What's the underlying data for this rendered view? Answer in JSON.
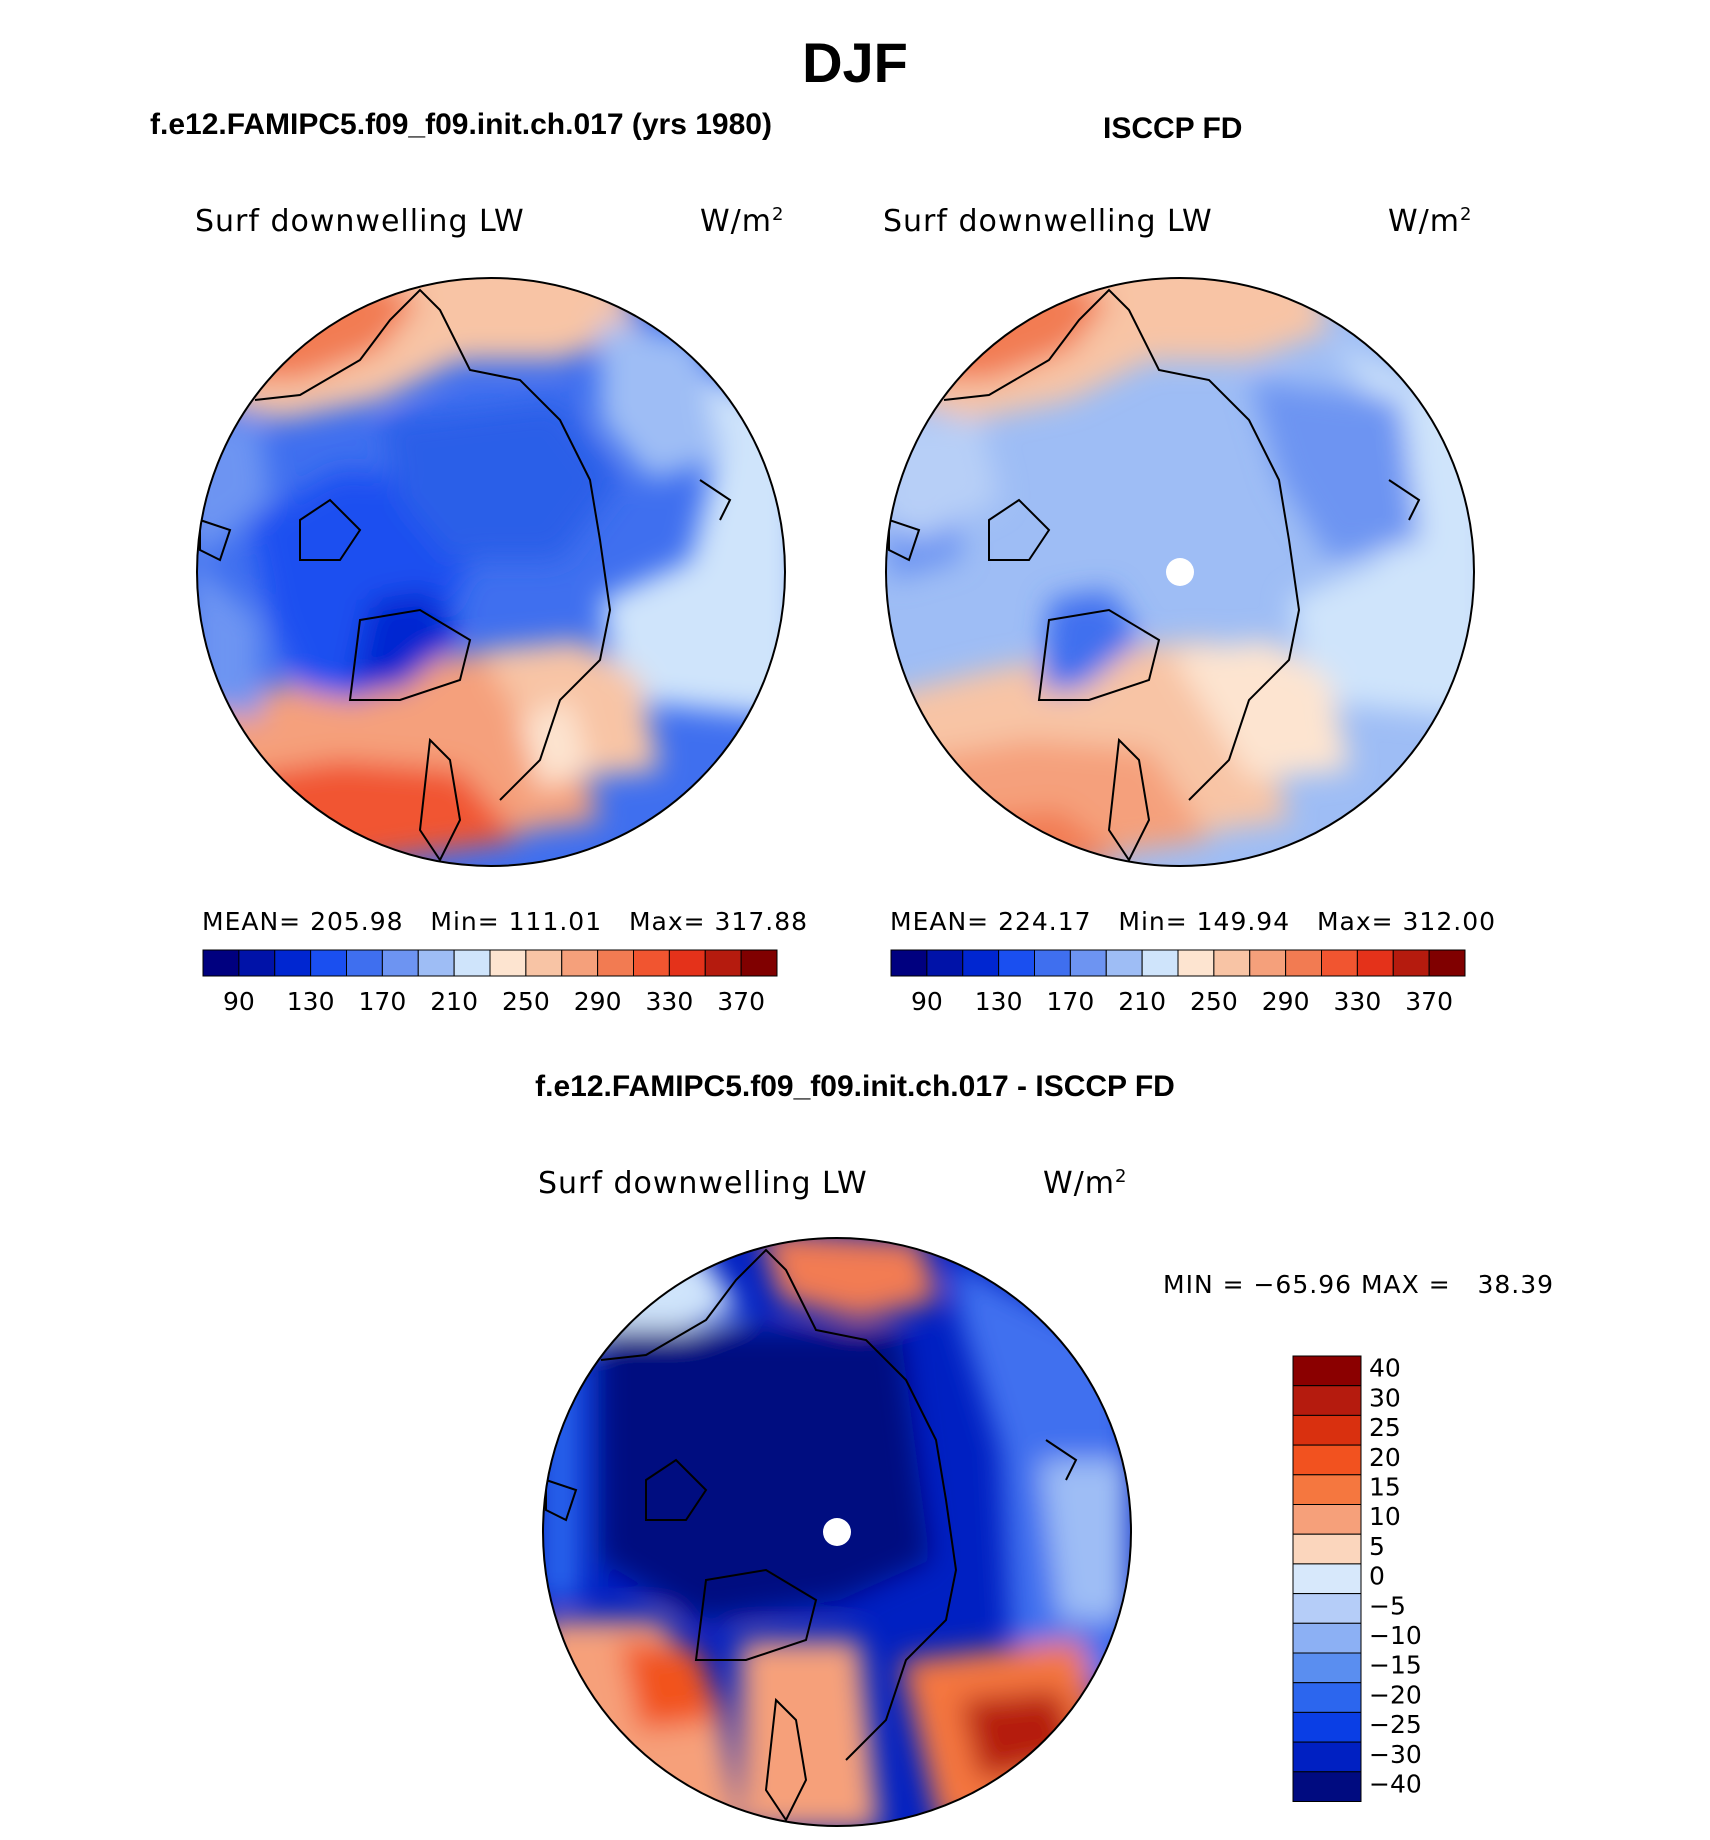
{
  "page_title": "DJF",
  "panels": [
    {
      "title": "f.e12.FAMIPC5.f09_f09.init.ch.017 (yrs 1980)",
      "variable": "Surf downwelling LW",
      "units": "W/m",
      "units_sup": "2",
      "stats": "MEAN= 205.98   Min= 111.01   Max= 317.88"
    },
    {
      "title": "ISCCP FD",
      "variable": "Surf downwelling LW",
      "units": "W/m",
      "units_sup": "2",
      "stats": "MEAN= 224.17   Min= 149.94   Max= 312.00"
    },
    {
      "title": "f.e12.FAMIPC5.f09_f09.init.ch.017 - ISCCP FD",
      "variable": "Surf downwelling LW",
      "units": "W/m",
      "units_sup": "2",
      "stats": "MIN = −65.96 MAX =   38.39"
    }
  ],
  "abs_colorbar": {
    "colors": [
      "#00007f",
      "#0012a8",
      "#0026d1",
      "#1a4ff0",
      "#3f6fef",
      "#6d94f2",
      "#9ebdf5",
      "#cfe4fb",
      "#fde4d0",
      "#f8c4a5",
      "#f5a07b",
      "#f27b52",
      "#f15530",
      "#e4321a",
      "#b51b0e",
      "#800000"
    ],
    "tick_labels": [
      "90",
      "130",
      "170",
      "210",
      "250",
      "290",
      "330",
      "370"
    ]
  },
  "diff_colorbar": {
    "colors_top_to_bottom": [
      "#8b0000",
      "#b51b0e",
      "#d9300f",
      "#f2521f",
      "#f5773f",
      "#f6a07a",
      "#fbd6bd",
      "#d7e8fb",
      "#b5cdf8",
      "#8cb0f4",
      "#5a8ef0",
      "#2c66ee",
      "#0a3ee5",
      "#0020c2",
      "#000b80"
    ],
    "tick_labels": [
      "40",
      "30",
      "25",
      "20",
      "15",
      "10",
      "5",
      "0",
      "−5",
      "−10",
      "−15",
      "−20",
      "−25",
      "−30",
      "−40"
    ]
  },
  "chart_data": [
    {
      "type": "heatmap",
      "title": "f.e12.FAMIPC5.f09_f09.init.ch.017 (yrs 1980)",
      "projection": "north polar stereographic",
      "variable": "Surf downwelling LW",
      "units": "W/m2",
      "mean": 205.98,
      "min": 111.01,
      "max": 317.88,
      "contour_levels": [
        90,
        110,
        130,
        150,
        170,
        190,
        210,
        230,
        250,
        270,
        290,
        310,
        330,
        350,
        370
      ]
    },
    {
      "type": "heatmap",
      "title": "ISCCP FD",
      "projection": "north polar stereographic",
      "variable": "Surf downwelling LW",
      "units": "W/m2",
      "mean": 224.17,
      "min": 149.94,
      "max": 312.0,
      "contour_levels": [
        90,
        110,
        130,
        150,
        170,
        190,
        210,
        230,
        250,
        270,
        290,
        310,
        330,
        350,
        370
      ]
    },
    {
      "type": "heatmap",
      "title": "f.e12.FAMIPC5.f09_f09.init.ch.017 - ISCCP FD",
      "projection": "north polar stereographic",
      "variable": "Surf downwelling LW",
      "units": "W/m2",
      "min": -65.96,
      "max": 38.39,
      "contour_levels": [
        -40,
        -30,
        -25,
        -20,
        -15,
        -10,
        -5,
        0,
        5,
        10,
        15,
        20,
        25,
        30,
        40
      ]
    }
  ]
}
